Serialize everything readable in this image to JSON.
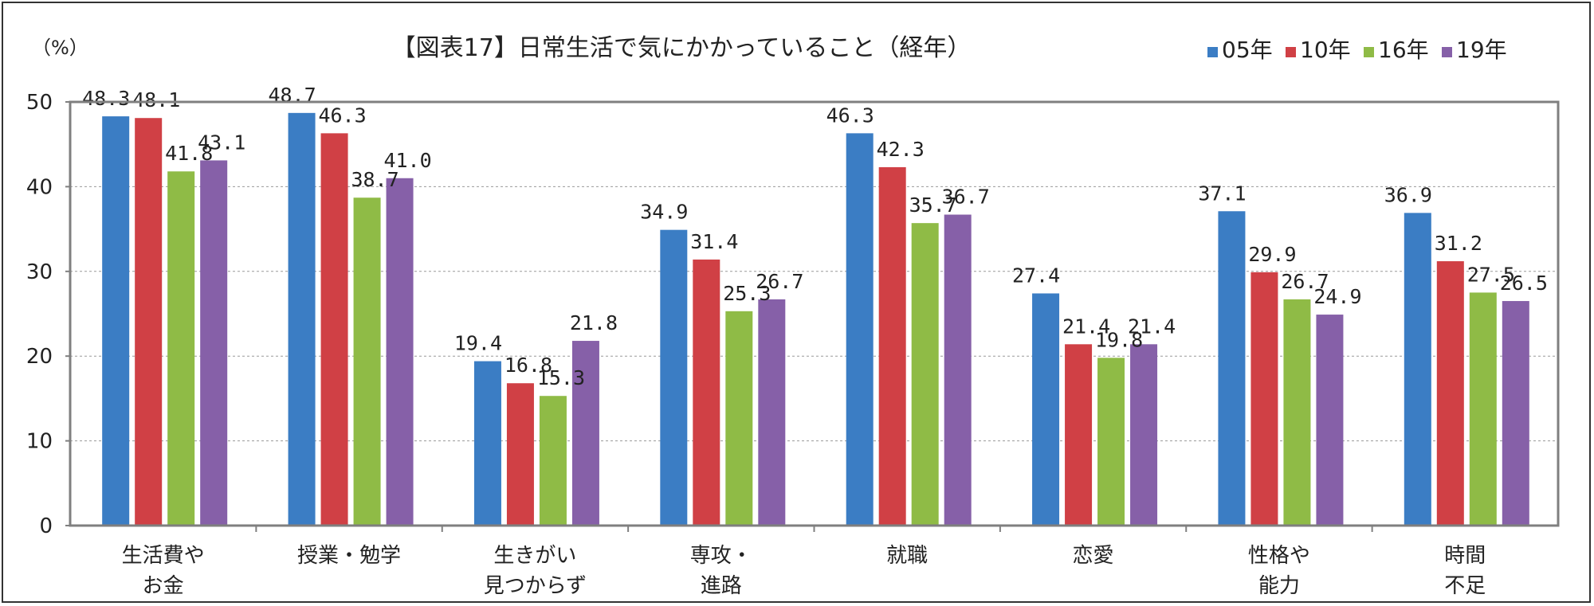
{
  "chart_data": {
    "type": "bar",
    "title": "【図表17】日常生活で気にかかっていること（経年）",
    "ylabel": "（%）",
    "xlabel": "",
    "ylim": [
      0,
      50
    ],
    "yticks": [
      "0",
      "10",
      "20",
      "30",
      "40",
      "50"
    ],
    "grid": true,
    "legend_position": "top-right",
    "categories": [
      [
        "生活費や",
        "お金"
      ],
      [
        "授業・勉学"
      ],
      [
        "生きがい",
        "見つからず"
      ],
      [
        "専攻・",
        "進路"
      ],
      [
        "就職"
      ],
      [
        "恋愛"
      ],
      [
        "性格や",
        "能力"
      ],
      [
        "時間",
        "不足"
      ]
    ],
    "series": [
      {
        "name": "05年",
        "color": "#3b7dc4",
        "values": [
          48.3,
          48.7,
          19.4,
          34.9,
          46.3,
          27.4,
          37.1,
          36.9
        ],
        "labels": [
          "48.3",
          "48.7",
          "19.4",
          "34.9",
          "46.3",
          "27.4",
          "37.1",
          "36.9"
        ]
      },
      {
        "name": "10年",
        "color": "#d04045",
        "values": [
          48.1,
          46.3,
          16.8,
          31.4,
          42.3,
          21.4,
          29.9,
          31.2
        ],
        "labels": [
          "48.1",
          "46.3",
          "16.8",
          "31.4",
          "42.3",
          "21.4",
          "29.9",
          "31.2"
        ]
      },
      {
        "name": "16年",
        "color": "#8fbb46",
        "values": [
          41.8,
          38.7,
          15.3,
          25.3,
          35.7,
          19.8,
          26.7,
          27.5
        ],
        "labels": [
          "41.8",
          "38.7",
          "15.3",
          "25.3",
          "35.7",
          "19.8",
          "26.7",
          "27.5"
        ]
      },
      {
        "name": "19年",
        "color": "#8660a8",
        "values": [
          43.1,
          41.0,
          21.8,
          26.7,
          36.7,
          21.4,
          24.9,
          26.5
        ],
        "labels": [
          "43.1",
          "41.0",
          "21.8",
          "26.7",
          "36.7",
          "21.4",
          "24.9",
          "26.5"
        ]
      }
    ],
    "colors": {
      "axis": "#7f7f7f",
      "grid": "#9a9a9a",
      "text": "#222222"
    }
  }
}
